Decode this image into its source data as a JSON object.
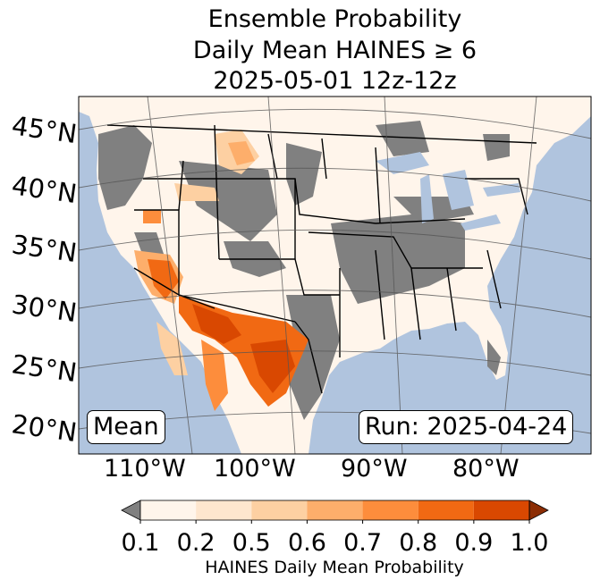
{
  "title": {
    "line1": "Ensemble Probability",
    "line2": "Daily Mean HAINES ≥ 6",
    "line3": "2025-05-01 12z-12z"
  },
  "map": {
    "lat_labels": [
      "45°N",
      "40°N",
      "35°N",
      "30°N",
      "25°N",
      "20°N"
    ],
    "lon_labels": [
      "110°W",
      "100°W",
      "90°W",
      "80°W"
    ],
    "stat_label": "Mean",
    "run_label": "Run: 2025-04-24",
    "colors": {
      "ocean": "#b0c4de",
      "land_missing": "#808080",
      "lakes": "#b0c4de"
    }
  },
  "colorbar": {
    "ticks": [
      "0.1",
      "0.2",
      "0.5",
      "0.6",
      "0.7",
      "0.8",
      "0.9",
      "1.0"
    ],
    "colors": [
      "#fff5eb",
      "#fee6ce",
      "#fdd0a2",
      "#fdae6b",
      "#fd8d3c",
      "#f16913",
      "#d94801"
    ],
    "under_color": "#808080",
    "over_color": "#8c2d04",
    "label": "HAINES Daily Mean Probability"
  }
}
